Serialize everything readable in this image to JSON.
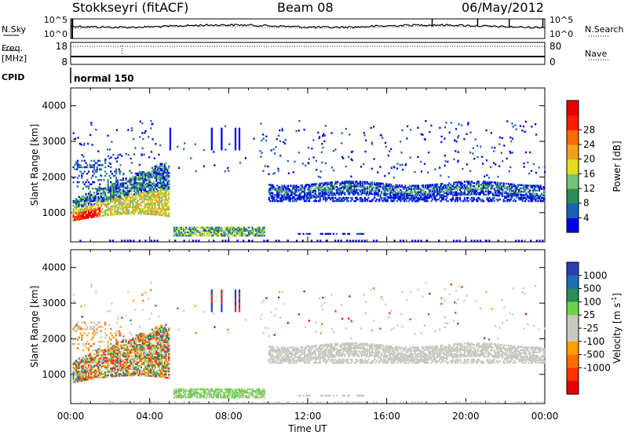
{
  "header": {
    "station": "Stokkseyri (fitACF)",
    "beam": "Beam 08",
    "date": "06/May/2012"
  },
  "side_labels": {
    "nsky": "N.Sky",
    "nsearch": "N.Search",
    "freq": "Freq.",
    "mhz": "[MHz]",
    "nave": "Nave",
    "cpid": "CPID"
  },
  "cpid_value": "normal 150",
  "chart_data": [
    {
      "type": "line",
      "panel": "noise",
      "y_scale": "log",
      "yticks_left": [
        "10^5",
        "10^0"
      ],
      "yticks_right": [
        "10^5",
        "10^0"
      ],
      "series": [
        {
          "name": "N.Sky"
        },
        {
          "name": "N.Search"
        }
      ]
    },
    {
      "type": "line",
      "panel": "frequency-nave",
      "yticks_left": [
        "18",
        "8"
      ],
      "yticks_right": [
        "80",
        "0"
      ],
      "series": [
        {
          "name": "Freq. [MHz]"
        },
        {
          "name": "Nave"
        }
      ]
    },
    {
      "type": "heatmap",
      "panel": "power",
      "ylabel": "Slant Range [km]",
      "ylim": [
        180,
        4500
      ],
      "yticks": [
        1000,
        2000,
        3000,
        4000
      ],
      "xlim_hours": [
        0,
        24
      ],
      "colorbar": {
        "label": "Power [dB]",
        "ticks": [
          "4",
          "8",
          "12",
          "16",
          "20",
          "24",
          "28"
        ],
        "colors": [
          "#0000e6",
          "#1e5fb4",
          "#2e8b57",
          "#74c476",
          "#e3dc1e",
          "#f0a21e",
          "#ff6a00",
          "#ff1a00",
          "#e60000"
        ]
      }
    },
    {
      "type": "heatmap",
      "panel": "velocity",
      "ylabel": "Slant Range [km]",
      "xlabel": "Time UT",
      "ylim": [
        180,
        4500
      ],
      "yticks": [
        1000,
        2000,
        3000,
        4000
      ],
      "xlim_hours": [
        0,
        24
      ],
      "xticks": [
        "00:00",
        "04:00",
        "08:00",
        "12:00",
        "16:00",
        "20:00",
        "00:00"
      ],
      "colorbar": {
        "label": "Velocity",
        "label_unit": "[m s",
        "label_exp": "-1",
        "label_close": "]",
        "ticks": [
          "1000",
          "500",
          "100",
          "25",
          "-25",
          "-100",
          "-500",
          "-1000"
        ],
        "colors": [
          "#2a3fb0",
          "#1f6fb0",
          "#2e8b57",
          "#6fd04a",
          "#c8c8c0",
          "#c8c8c0",
          "#ffa000",
          "#ff7000",
          "#ff3000",
          "#e60000"
        ]
      }
    }
  ]
}
